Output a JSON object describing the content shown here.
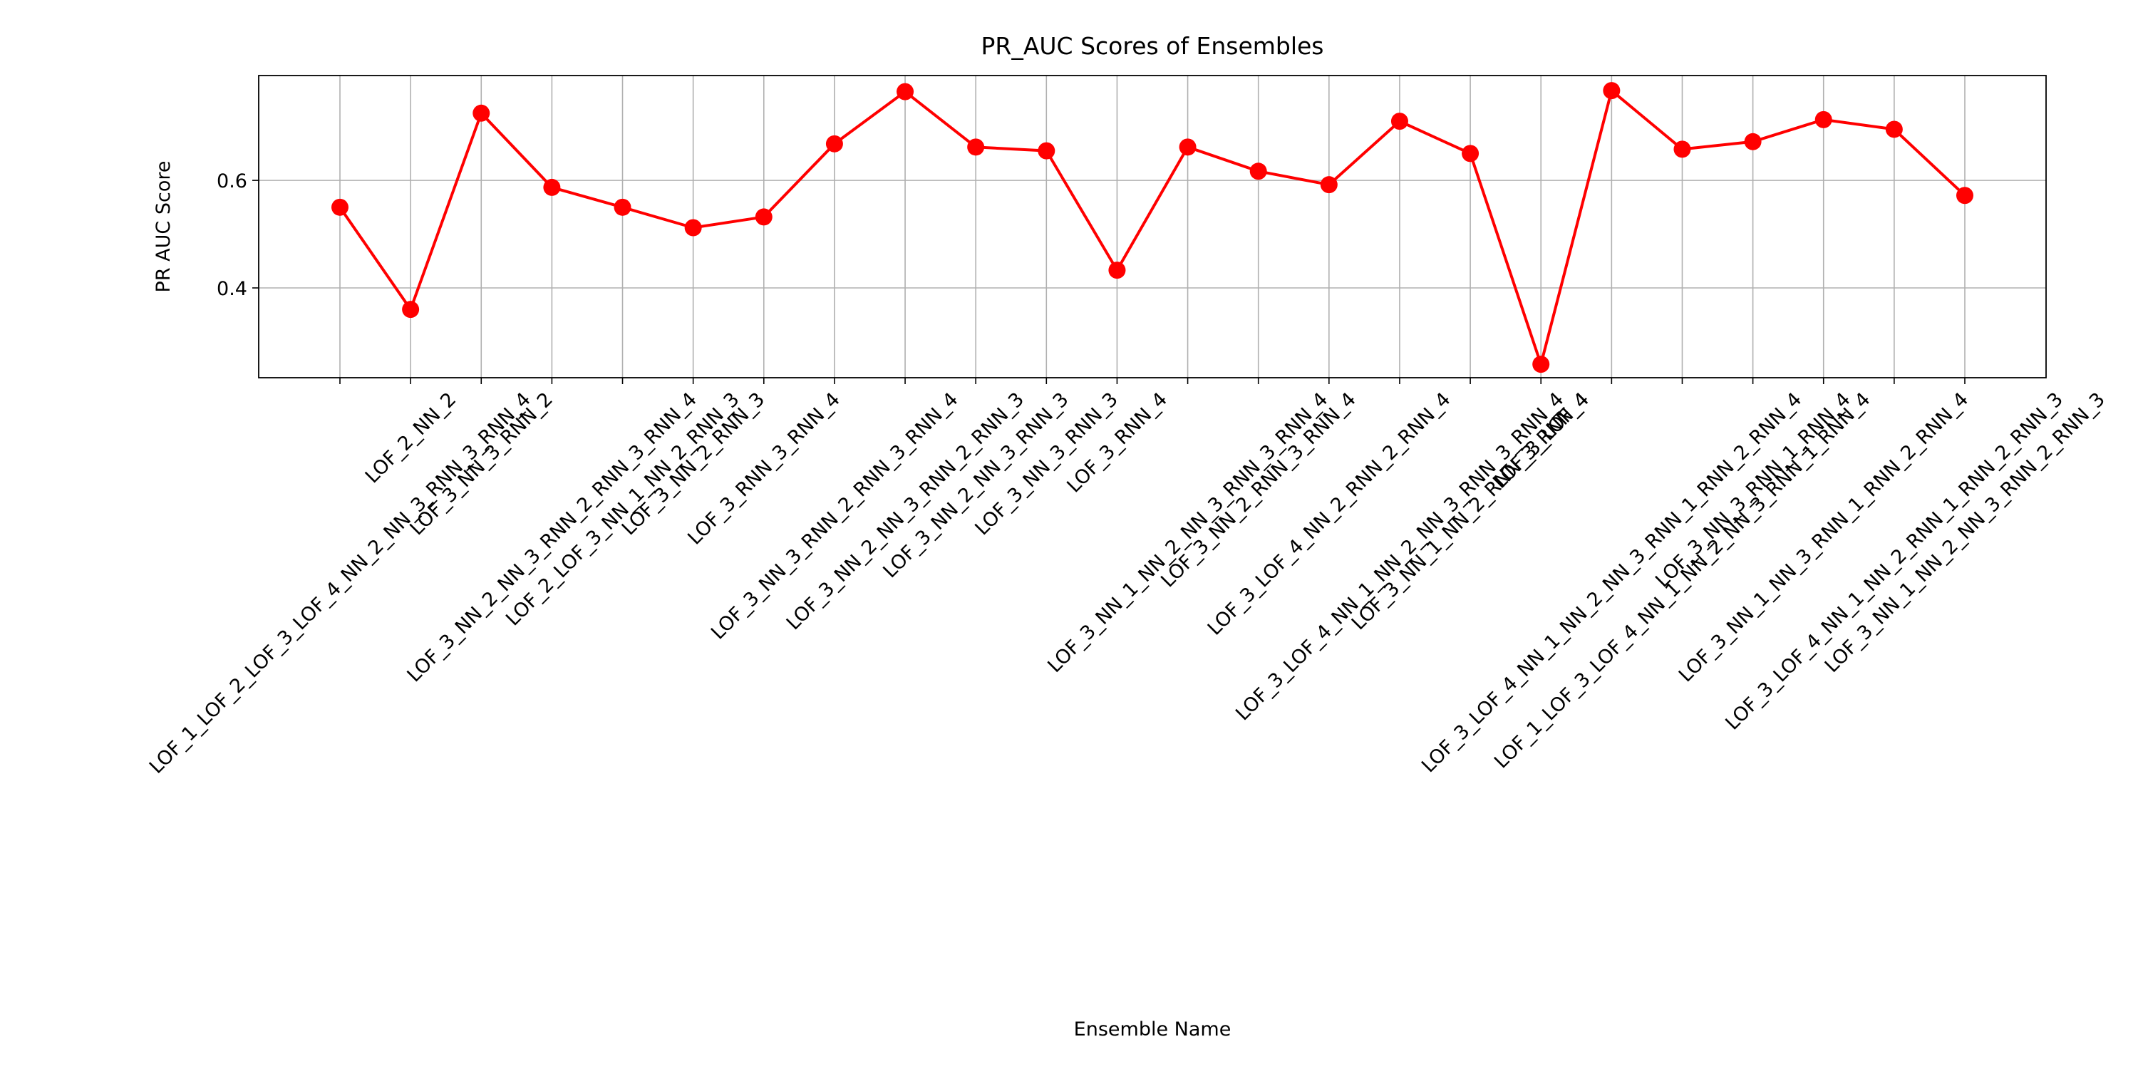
{
  "chart_data": {
    "type": "line",
    "title": "PR_AUC Scores of Ensembles",
    "xlabel": "Ensemble Name",
    "ylabel": "PR AUC Score",
    "categories": [
      "LOF_1_LOF_2_LOF_3_LOF_4_NN_2_NN_3_RNN_3_RNN_4",
      "LOF_2_NN_2",
      "LOF_3_NN_3_RNN_2",
      "LOF_3_NN_2_NN_3_RNN_2_RNN_3_RNN_4",
      "LOF_2_LOF_3_NN_1_NN_2_RNN_3",
      "LOF_3_NN_2_RNN_3",
      "LOF_3_RNN_3_RNN_4",
      "LOF_3_NN_3_RNN_2_RNN_3_RNN_4",
      "LOF_3_NN_2_NN_3_RNN_2_RNN_3",
      "LOF_3_NN_2_NN_3_RNN_3",
      "LOF_3_NN_3_RNN_3",
      "LOF_3_RNN_4",
      "LOF_3_NN_1_NN_2_NN_3_RNN_3_RNN_4",
      "LOF_3_NN_2_RNN_3_RNN_4",
      "LOF_3_LOF_4_NN_2_RNN_2_RNN_4",
      "LOF_3_LOF_4_NN_1_NN_2_NN_3_RNN_3_RNN_4",
      "LOF_3_NN_1_NN_2_RNN_3_RNN_4",
      "LOF_3_LOF_4",
      "LOF_3_LOF_4_NN_1_NN_2_NN_3_RNN_1_RNN_2_RNN_4",
      "LOF_1_LOF_3_LOF_4_NN_1_NN_2_NN_3_RNN_1_RNN_4",
      "LOF_3_NN_3_RNN_1_RNN_4",
      "LOF_3_NN_1_NN_3_RNN_1_RNN_2_RNN_4",
      "LOF_3_LOF_4_NN_1_NN_2_RNN_1_RNN_2_RNN_3",
      "LOF_3_NN_1_NN_2_NN_3_RNN_2_RNN_3"
    ],
    "series": [
      {
        "name": "PR AUC",
        "color": "#ff0000",
        "values": [
          0.55,
          0.36,
          0.725,
          0.587,
          0.55,
          0.512,
          0.532,
          0.668,
          0.765,
          0.662,
          0.655,
          0.433,
          0.662,
          0.617,
          0.592,
          0.71,
          0.65,
          0.258,
          0.767,
          0.658,
          0.672,
          0.713,
          0.695,
          0.572
        ]
      }
    ],
    "ylim": [
      0.233,
      0.795
    ],
    "yticks": [
      0.4,
      0.6
    ],
    "grid": true
  }
}
